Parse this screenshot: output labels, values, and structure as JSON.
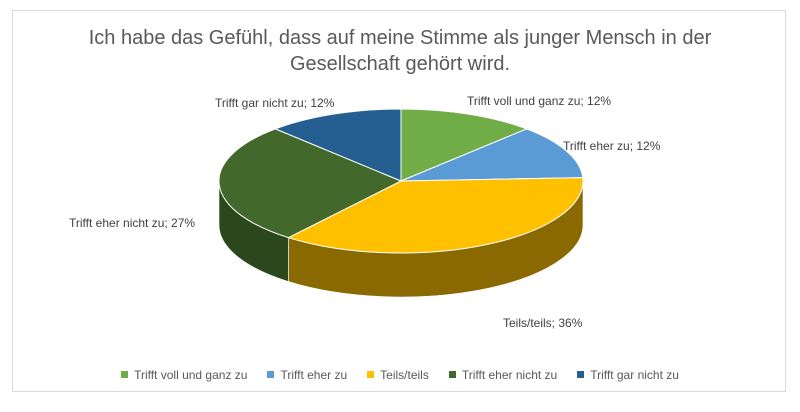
{
  "chart_data": {
    "type": "pie",
    "title_lines": [
      "Ich habe das Gefühl, dass auf meine Stimme als junger Mensch in der",
      "Gesellschaft gehört wird."
    ],
    "slices": [
      {
        "label": "Trifft voll und ganz zu",
        "value": 12,
        "data_label": "Trifft voll und ganz zu; 12%",
        "color": "#70ad47",
        "side": "#4d7a30"
      },
      {
        "label": "Trifft eher zu",
        "value": 12,
        "data_label": "Trifft eher zu; 12%",
        "color": "#5b9bd5",
        "side": "#3e6e9b"
      },
      {
        "label": "Teils/teils",
        "value": 36,
        "data_label": "Teils/teils; 36%",
        "color": "#ffc000",
        "side": "#8a6a00"
      },
      {
        "label": "Trifft eher nicht zu",
        "value": 27,
        "data_label": "Trifft eher nicht zu; 27%",
        "color": "#43682b",
        "side": "#2c471b"
      },
      {
        "label": "Trifft gar nicht zu",
        "value": 12,
        "data_label": "Trifft gar nicht zu; 12%",
        "color": "#255e91",
        "side": "#173d60"
      }
    ],
    "legend_position": "bottom",
    "three_d": true
  }
}
